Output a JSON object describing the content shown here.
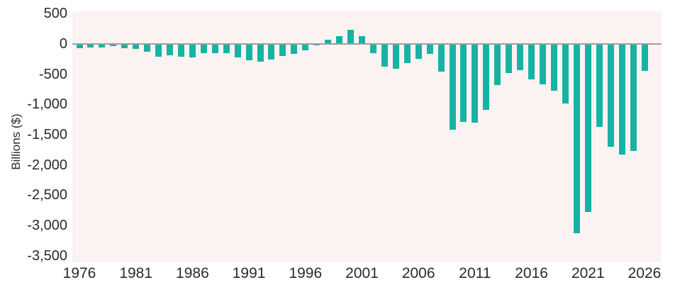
{
  "chart_data": {
    "type": "bar",
    "title": "",
    "xlabel": "",
    "ylabel": "Billions ($)",
    "legend": null,
    "grid": false,
    "bar_color": "#16b3a4",
    "plot_background": "#fbf3f2",
    "zero_line_color": "#9f9f9f",
    "text_color": "#2b2b2b",
    "ylim": [
      -3608,
      538
    ],
    "yticks": [
      500,
      0,
      -500,
      -1000,
      -1500,
      -2000,
      -2500,
      -3000,
      -3500
    ],
    "ytick_labels": [
      "500",
      "0",
      "-500",
      "-1,000",
      "-1,500",
      "-2,000",
      "-2,500",
      "-3,000",
      "-3,500"
    ],
    "xticks": [
      1976,
      1981,
      1986,
      1991,
      1996,
      2001,
      2006,
      2011,
      2016,
      2021,
      2026
    ],
    "xtick_labels": [
      "1976",
      "1981",
      "1986",
      "1991",
      "1996",
      "2001",
      "2006",
      "2011",
      "2016",
      "2021",
      "2026"
    ],
    "x": [
      1976,
      1977,
      1978,
      1979,
      1980,
      1981,
      1982,
      1983,
      1984,
      1985,
      1986,
      1987,
      1988,
      1989,
      1990,
      1991,
      1992,
      1993,
      1994,
      1995,
      1996,
      1997,
      1998,
      1999,
      2000,
      2001,
      2002,
      2003,
      2004,
      2005,
      2006,
      2007,
      2008,
      2009,
      2010,
      2011,
      2012,
      2013,
      2014,
      2015,
      2016,
      2017,
      2018,
      2019,
      2020,
      2021,
      2022,
      2023,
      2024,
      2025,
      2026
    ],
    "values": [
      -73.7,
      -53.7,
      -59.2,
      -40.7,
      -73.8,
      -79.0,
      -128.0,
      -207.8,
      -185.4,
      -212.3,
      -221.2,
      -149.7,
      -155.2,
      -152.6,
      -221.0,
      -269.2,
      -290.3,
      -255.1,
      -203.2,
      -164.0,
      -107.4,
      -21.9,
      69.3,
      125.6,
      236.2,
      128.2,
      -157.8,
      -377.6,
      -412.7,
      -318.3,
      -248.2,
      -160.7,
      -458.6,
      -1412.7,
      -1294.4,
      -1299.6,
      -1087.0,
      -679.5,
      -484.6,
      -438.5,
      -584.7,
      -665.4,
      -779.0,
      -984.2,
      -3131.9,
      -2775.3,
      -1375.4,
      -1695.2,
      -1833.8,
      -1775.0,
      -450.0
    ]
  }
}
